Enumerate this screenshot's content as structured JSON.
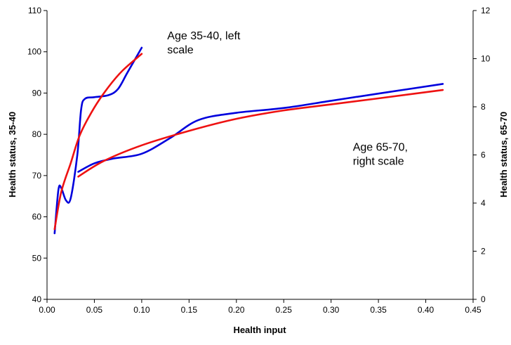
{
  "chart_data": {
    "type": "line",
    "title": "",
    "xlabel": "Health input",
    "ylabel_left": "Health status, 35-40",
    "ylabel_right": "Health status, 65-70",
    "xlim": [
      0,
      0.45
    ],
    "ylim_left": [
      40,
      110
    ],
    "ylim_right": [
      0,
      12
    ],
    "x_ticks": [
      "0.00",
      "0.05",
      "0.10",
      "0.15",
      "0.20",
      "0.25",
      "0.30",
      "0.35",
      "0.40",
      "0.45"
    ],
    "y_left_ticks": [
      "40",
      "50",
      "60",
      "70",
      "80",
      "90",
      "100",
      "110"
    ],
    "y_right_ticks": [
      "0",
      "2",
      "4",
      "6",
      "8",
      "10",
      "12"
    ],
    "grid": false,
    "colors": {
      "observed": "#0000dd",
      "fitted": "#ee1111"
    },
    "series": [
      {
        "group": "age_35_40",
        "axis": "left",
        "style": "observed",
        "points": [
          [
            0.008,
            56
          ],
          [
            0.012,
            66.5
          ],
          [
            0.015,
            67
          ],
          [
            0.02,
            64
          ],
          [
            0.025,
            64.5
          ],
          [
            0.032,
            75
          ],
          [
            0.036,
            86
          ],
          [
            0.04,
            88.6
          ],
          [
            0.05,
            89
          ],
          [
            0.065,
            89.5
          ],
          [
            0.075,
            91
          ],
          [
            0.085,
            95
          ],
          [
            0.1,
            101
          ]
        ]
      },
      {
        "group": "age_35_40",
        "axis": "left",
        "style": "fitted",
        "points": [
          [
            0.008,
            57
          ],
          [
            0.015,
            66
          ],
          [
            0.025,
            73
          ],
          [
            0.035,
            80
          ],
          [
            0.05,
            86.5
          ],
          [
            0.065,
            91.5
          ],
          [
            0.08,
            95.5
          ],
          [
            0.1,
            99.5
          ]
        ]
      },
      {
        "group": "age_65_70",
        "axis": "right",
        "style": "observed",
        "points": [
          [
            0.033,
            5.3
          ],
          [
            0.05,
            5.65
          ],
          [
            0.07,
            5.85
          ],
          [
            0.1,
            6.05
          ],
          [
            0.13,
            6.7
          ],
          [
            0.16,
            7.45
          ],
          [
            0.2,
            7.75
          ],
          [
            0.25,
            7.95
          ],
          [
            0.3,
            8.25
          ],
          [
            0.35,
            8.55
          ],
          [
            0.418,
            8.95
          ]
        ]
      },
      {
        "group": "age_65_70",
        "axis": "right",
        "style": "fitted",
        "points": [
          [
            0.033,
            5.1
          ],
          [
            0.06,
            5.75
          ],
          [
            0.1,
            6.4
          ],
          [
            0.15,
            7.0
          ],
          [
            0.2,
            7.5
          ],
          [
            0.25,
            7.85
          ],
          [
            0.3,
            8.1
          ],
          [
            0.35,
            8.35
          ],
          [
            0.418,
            8.7
          ]
        ]
      }
    ],
    "annotations": [
      {
        "lines": [
          "Age 35-40, left",
          "scale"
        ],
        "anchor_x": 0.127,
        "anchor_y_left": 103
      },
      {
        "lines": [
          "Age 65-70,",
          "right scale"
        ],
        "anchor_x": 0.323,
        "anchor_y_left": 76
      }
    ]
  }
}
